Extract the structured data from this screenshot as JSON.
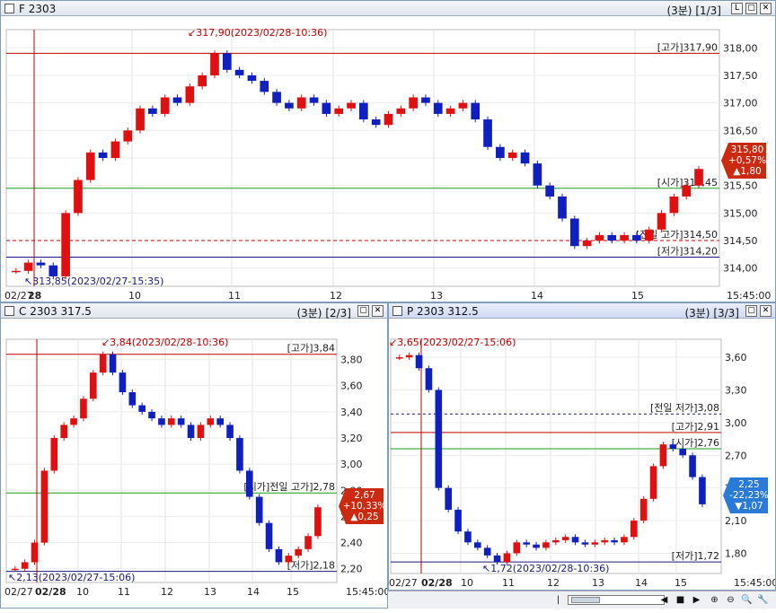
{
  "colors": {
    "up": "#e01010",
    "down": "#1020c0",
    "high_line": "#c00000",
    "open_line": "#1a9a1a",
    "low_line": "#1a1a80",
    "prev_line": "#c00000",
    "badge_up": "#cc2a10",
    "badge_down": "#2a7ad8"
  },
  "pane_f": {
    "title": "F 2303",
    "period": "(3분)",
    "page": "[1/3]",
    "btn_restore": "▢",
    "btn_close": "✕",
    "btn_l": "L",
    "y_ticks": [
      "318,00",
      "317,50",
      "317,00",
      "316,50",
      "316,00",
      "315,50",
      "315,00",
      "314,50",
      "314,00"
    ],
    "x_ticks": [
      "02/27",
      "28",
      "10",
      "11",
      "12",
      "13",
      "14",
      "15",
      "15:45:00"
    ],
    "high_label": "[고가]317,90",
    "open_label": "[시가]315,45",
    "prev_high_label": "[전일 고가]314,50",
    "low_label": "[저가]314,20",
    "max_annot": "317,90(2023/02/28-10:36)",
    "min_annot": "313,85(2023/02/27-15:35)",
    "badge": {
      "price": "315,80",
      "pct": "+0,57%",
      "chg": "▲1,80"
    }
  },
  "pane_c": {
    "title": "C 2303 317.5",
    "period": "(3분)",
    "page": "[2/3]",
    "btn_restore": "▢",
    "btn_close": "✕",
    "y_ticks": [
      "3,80",
      "3,60",
      "3,40",
      "3,20",
      "3,00",
      "2,80",
      "2,60",
      "2,40",
      "2,20"
    ],
    "x_ticks": [
      "02/27",
      "02/28",
      "10",
      "11",
      "12",
      "13",
      "14",
      "15",
      "15:45:00"
    ],
    "high_label": "[고가]3,84",
    "open_label": "[시가]전일 고가]2,78",
    "low_label": "[저가]2,18",
    "max_annot": "3,84(2023/02/28-10:36)",
    "min_annot": "2,13(2023/02/27-15:06)",
    "badge": {
      "price": "2,67",
      "pct": "+10,33%",
      "chg": "▲0,25"
    }
  },
  "pane_p": {
    "title": "P 2303 312.5",
    "period": "(3분)",
    "page": "[3/3]",
    "btn_restore": "▢",
    "btn_close": "✕",
    "y_ticks": [
      "3,60",
      "3,30",
      "3,00",
      "2,70",
      "2,40",
      "2,10",
      "1,80"
    ],
    "x_ticks": [
      "02/27",
      "02/28",
      "10",
      "11",
      "12",
      "13",
      "14",
      "15",
      "15:45:00"
    ],
    "prev_low_label": "[전일 저가]3,08",
    "high_label": "[고가]2,91",
    "open_label": "[시가]2,76",
    "low_label": "[저가]1,72",
    "max_annot": "3,65(2023/02/27-15:06)",
    "min_annot": "1,72(2023/02/28-10:36)",
    "badge": {
      "price": "2,25",
      "pct": "-22,23%",
      "chg": "▼1,07"
    }
  },
  "toolbar": {
    "prev": "◀",
    "stop": "■",
    "next": "▶",
    "zoom_in": "⊕",
    "zoom_out": "⊖",
    "zoom": "🔍",
    "tool": "🔧"
  },
  "chart_data": [
    {
      "type": "candlestick",
      "title": "F 2303",
      "ylim": [
        313.8,
        318.2
      ],
      "series": [
        {
          "name": "F 2303",
          "values": [
            313.95,
            314.1,
            314.05,
            313.85,
            315.0,
            315.6,
            316.1,
            316.0,
            316.3,
            316.5,
            316.9,
            316.8,
            317.1,
            317.0,
            317.3,
            317.5,
            317.9,
            317.6,
            317.5,
            317.4,
            317.2,
            317.0,
            316.9,
            317.1,
            317.0,
            316.8,
            316.9,
            317.0,
            316.7,
            316.6,
            316.8,
            316.9,
            317.1,
            317.0,
            316.8,
            316.9,
            317.0,
            316.7,
            316.2,
            316.0,
            316.1,
            315.9,
            315.5,
            315.3,
            314.9,
            314.4,
            314.5,
            314.6,
            314.5,
            314.6,
            314.5,
            314.7,
            315.0,
            315.3,
            315.5,
            315.8
          ]
        }
      ]
    },
    {
      "type": "candlestick",
      "title": "C 2303 317.5",
      "ylim": [
        2.15,
        3.9
      ],
      "series": [
        {
          "name": "C 2303 317.5",
          "values": [
            2.2,
            2.25,
            2.4,
            2.95,
            3.2,
            3.3,
            3.35,
            3.5,
            3.7,
            3.84,
            3.7,
            3.55,
            3.45,
            3.4,
            3.35,
            3.3,
            3.35,
            3.3,
            3.2,
            3.3,
            3.35,
            3.3,
            3.2,
            2.95,
            2.75,
            2.55,
            2.35,
            2.25,
            2.3,
            2.35,
            2.45,
            2.67
          ]
        }
      ]
    },
    {
      "type": "candlestick",
      "title": "P 2303 312.5",
      "ylim": [
        1.68,
        3.7
      ],
      "series": [
        {
          "name": "P 2303 312.5",
          "values": [
            3.6,
            3.62,
            3.5,
            3.3,
            2.4,
            2.2,
            2.0,
            1.9,
            1.85,
            1.78,
            1.72,
            1.8,
            1.9,
            1.88,
            1.85,
            1.9,
            1.92,
            1.95,
            1.9,
            1.88,
            1.9,
            1.92,
            1.9,
            1.95,
            2.1,
            2.3,
            2.6,
            2.8,
            2.76,
            2.7,
            2.5,
            2.25
          ]
        }
      ]
    }
  ]
}
